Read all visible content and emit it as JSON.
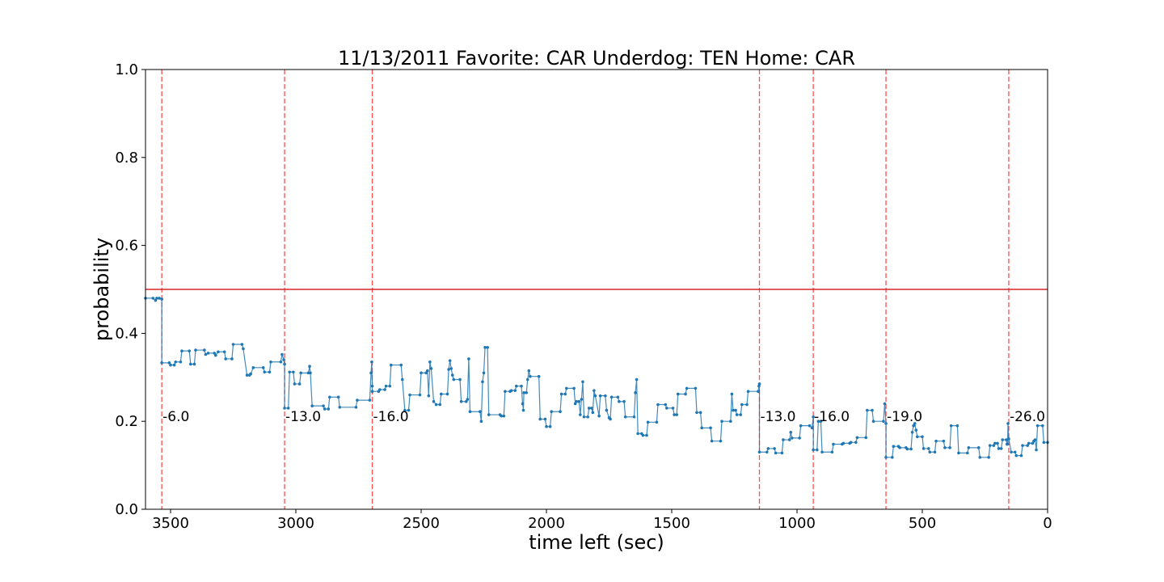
{
  "chart_data": {
    "type": "line",
    "title": "11/13/2011 Favorite: CAR Underdog: TEN Home: CAR",
    "xlabel": "time left (sec)",
    "ylabel": "probability",
    "xlim": [
      3600,
      0
    ],
    "ylim": [
      0.0,
      1.0
    ],
    "x_ticks": [
      3500,
      3000,
      2500,
      2000,
      1500,
      1000,
      500,
      0
    ],
    "x_tick_labels": [
      "3500",
      "3000",
      "2500",
      "2000",
      "1500",
      "1000",
      "500",
      "0"
    ],
    "y_ticks": [
      0.0,
      0.2,
      0.4,
      0.6,
      0.8,
      1.0
    ],
    "y_tick_labels": [
      "0.0",
      "0.2",
      "0.4",
      "0.6",
      "0.8",
      "1.0"
    ],
    "grid": false,
    "reference_line": {
      "y": 0.5,
      "color": "#d62728"
    },
    "line_color": "#1f77b4",
    "marker_color": "#1f77b4",
    "event_line_color": "#ff4d4d",
    "events": [
      {
        "x": 3535,
        "label": "-6.0"
      },
      {
        "x": 3045,
        "label": "-13.0"
      },
      {
        "x": 2695,
        "label": "-16.0"
      },
      {
        "x": 1150,
        "label": "-13.0"
      },
      {
        "x": 935,
        "label": "-16.0"
      },
      {
        "x": 645,
        "label": "-19.0"
      },
      {
        "x": 155,
        "label": "-26.0"
      }
    ],
    "series": [
      {
        "points": [
          [
            3600,
            0.48
          ],
          [
            3570,
            0.48
          ],
          [
            3560,
            0.475
          ],
          [
            3555,
            0.48
          ],
          [
            3545,
            0.48
          ],
          [
            3535,
            0.478
          ],
          [
            3535,
            0.333
          ],
          [
            3505,
            0.333
          ],
          [
            3500,
            0.328
          ],
          [
            3485,
            0.328
          ],
          [
            3480,
            0.335
          ],
          [
            3460,
            0.335
          ],
          [
            3455,
            0.36
          ],
          [
            3425,
            0.36
          ],
          [
            3420,
            0.33
          ],
          [
            3405,
            0.33
          ],
          [
            3400,
            0.362
          ],
          [
            3365,
            0.362
          ],
          [
            3360,
            0.352
          ],
          [
            3350,
            0.355
          ],
          [
            3325,
            0.355
          ],
          [
            3320,
            0.35
          ],
          [
            3310,
            0.358
          ],
          [
            3285,
            0.358
          ],
          [
            3280,
            0.342
          ],
          [
            3255,
            0.342
          ],
          [
            3250,
            0.375
          ],
          [
            3215,
            0.375
          ],
          [
            3210,
            0.365
          ],
          [
            3195,
            0.305
          ],
          [
            3185,
            0.305
          ],
          [
            3180,
            0.308
          ],
          [
            3170,
            0.322
          ],
          [
            3130,
            0.322
          ],
          [
            3125,
            0.312
          ],
          [
            3105,
            0.312
          ],
          [
            3100,
            0.335
          ],
          [
            3060,
            0.335
          ],
          [
            3055,
            0.352
          ],
          [
            3048,
            0.34
          ],
          [
            3045,
            0.33
          ],
          [
            3045,
            0.23
          ],
          [
            3030,
            0.23
          ],
          [
            3025,
            0.312
          ],
          [
            3010,
            0.312
          ],
          [
            3005,
            0.285
          ],
          [
            2985,
            0.285
          ],
          [
            2980,
            0.31
          ],
          [
            2950,
            0.31
          ],
          [
            2945,
            0.325
          ],
          [
            2942,
            0.31
          ],
          [
            2935,
            0.235
          ],
          [
            2890,
            0.235
          ],
          [
            2885,
            0.228
          ],
          [
            2870,
            0.228
          ],
          [
            2865,
            0.255
          ],
          [
            2830,
            0.255
          ],
          [
            2825,
            0.232
          ],
          [
            2760,
            0.232
          ],
          [
            2755,
            0.248
          ],
          [
            2705,
            0.248
          ],
          [
            2700,
            0.31
          ],
          [
            2697,
            0.335
          ],
          [
            2695,
            0.28
          ],
          [
            2695,
            0.268
          ],
          [
            2670,
            0.268
          ],
          [
            2665,
            0.272
          ],
          [
            2645,
            0.272
          ],
          [
            2640,
            0.28
          ],
          [
            2625,
            0.28
          ],
          [
            2620,
            0.328
          ],
          [
            2580,
            0.328
          ],
          [
            2575,
            0.295
          ],
          [
            2565,
            0.225
          ],
          [
            2550,
            0.225
          ],
          [
            2545,
            0.26
          ],
          [
            2505,
            0.26
          ],
          [
            2500,
            0.31
          ],
          [
            2480,
            0.31
          ],
          [
            2475,
            0.315
          ],
          [
            2470,
            0.258
          ],
          [
            2465,
            0.335
          ],
          [
            2460,
            0.32
          ],
          [
            2450,
            0.245
          ],
          [
            2440,
            0.238
          ],
          [
            2425,
            0.238
          ],
          [
            2420,
            0.262
          ],
          [
            2395,
            0.262
          ],
          [
            2390,
            0.318
          ],
          [
            2385,
            0.338
          ],
          [
            2380,
            0.32
          ],
          [
            2375,
            0.305
          ],
          [
            2370,
            0.295
          ],
          [
            2345,
            0.295
          ],
          [
            2340,
            0.245
          ],
          [
            2320,
            0.245
          ],
          [
            2315,
            0.25
          ],
          [
            2310,
            0.342
          ],
          [
            2305,
            0.222
          ],
          [
            2265,
            0.222
          ],
          [
            2260,
            0.2
          ],
          [
            2255,
            0.29
          ],
          [
            2250,
            0.31
          ],
          [
            2245,
            0.368
          ],
          [
            2235,
            0.368
          ],
          [
            2230,
            0.215
          ],
          [
            2185,
            0.215
          ],
          [
            2180,
            0.212
          ],
          [
            2170,
            0.212
          ],
          [
            2165,
            0.268
          ],
          [
            2145,
            0.268
          ],
          [
            2140,
            0.27
          ],
          [
            2125,
            0.27
          ],
          [
            2120,
            0.28
          ],
          [
            2100,
            0.28
          ],
          [
            2095,
            0.24
          ],
          [
            2092,
            0.225
          ],
          [
            2090,
            0.265
          ],
          [
            2080,
            0.265
          ],
          [
            2075,
            0.295
          ],
          [
            2070,
            0.315
          ],
          [
            2065,
            0.302
          ],
          [
            2030,
            0.302
          ],
          [
            2025,
            0.205
          ],
          [
            2005,
            0.205
          ],
          [
            2000,
            0.188
          ],
          [
            1985,
            0.188
          ],
          [
            1980,
            0.222
          ],
          [
            1945,
            0.222
          ],
          [
            1940,
            0.262
          ],
          [
            1925,
            0.262
          ],
          [
            1920,
            0.275
          ],
          [
            1890,
            0.275
          ],
          [
            1885,
            0.24
          ],
          [
            1880,
            0.245
          ],
          [
            1870,
            0.245
          ],
          [
            1865,
            0.215
          ],
          [
            1860,
            0.25
          ],
          [
            1855,
            0.29
          ],
          [
            1850,
            0.21
          ],
          [
            1835,
            0.21
          ],
          [
            1830,
            0.23
          ],
          [
            1820,
            0.23
          ],
          [
            1815,
            0.22
          ],
          [
            1810,
            0.27
          ],
          [
            1805,
            0.258
          ],
          [
            1790,
            0.212
          ],
          [
            1785,
            0.258
          ],
          [
            1765,
            0.258
          ],
          [
            1760,
            0.225
          ],
          [
            1750,
            0.208
          ],
          [
            1745,
            0.205
          ],
          [
            1740,
            0.255
          ],
          [
            1715,
            0.255
          ],
          [
            1710,
            0.245
          ],
          [
            1690,
            0.245
          ],
          [
            1685,
            0.21
          ],
          [
            1650,
            0.21
          ],
          [
            1645,
            0.265
          ],
          [
            1640,
            0.295
          ],
          [
            1635,
            0.172
          ],
          [
            1620,
            0.172
          ],
          [
            1615,
            0.168
          ],
          [
            1600,
            0.168
          ],
          [
            1595,
            0.198
          ],
          [
            1560,
            0.198
          ],
          [
            1555,
            0.238
          ],
          [
            1525,
            0.238
          ],
          [
            1520,
            0.23
          ],
          [
            1495,
            0.23
          ],
          [
            1490,
            0.215
          ],
          [
            1480,
            0.215
          ],
          [
            1475,
            0.262
          ],
          [
            1445,
            0.262
          ],
          [
            1440,
            0.275
          ],
          [
            1405,
            0.275
          ],
          [
            1400,
            0.22
          ],
          [
            1385,
            0.22
          ],
          [
            1380,
            0.185
          ],
          [
            1345,
            0.185
          ],
          [
            1340,
            0.155
          ],
          [
            1305,
            0.155
          ],
          [
            1300,
            0.2
          ],
          [
            1265,
            0.2
          ],
          [
            1260,
            0.262
          ],
          [
            1255,
            0.225
          ],
          [
            1245,
            0.225
          ],
          [
            1240,
            0.215
          ],
          [
            1225,
            0.215
          ],
          [
            1220,
            0.238
          ],
          [
            1200,
            0.238
          ],
          [
            1195,
            0.268
          ],
          [
            1155,
            0.268
          ],
          [
            1152,
            0.28
          ],
          [
            1150,
            0.285
          ],
          [
            1150,
            0.13
          ],
          [
            1120,
            0.13
          ],
          [
            1115,
            0.138
          ],
          [
            1090,
            0.138
          ],
          [
            1085,
            0.128
          ],
          [
            1060,
            0.128
          ],
          [
            1055,
            0.158
          ],
          [
            1030,
            0.158
          ],
          [
            1025,
            0.175
          ],
          [
            1020,
            0.162
          ],
          [
            990,
            0.162
          ],
          [
            985,
            0.19
          ],
          [
            950,
            0.19
          ],
          [
            940,
            0.185
          ],
          [
            935,
            0.21
          ],
          [
            935,
            0.135
          ],
          [
            920,
            0.135
          ],
          [
            915,
            0.2
          ],
          [
            905,
            0.2
          ],
          [
            900,
            0.13
          ],
          [
            860,
            0.13
          ],
          [
            855,
            0.148
          ],
          [
            820,
            0.148
          ],
          [
            815,
            0.15
          ],
          [
            790,
            0.15
          ],
          [
            785,
            0.152
          ],
          [
            765,
            0.152
          ],
          [
            760,
            0.163
          ],
          [
            725,
            0.163
          ],
          [
            720,
            0.225
          ],
          [
            700,
            0.225
          ],
          [
            695,
            0.2
          ],
          [
            655,
            0.2
          ],
          [
            650,
            0.24
          ],
          [
            645,
            0.195
          ],
          [
            645,
            0.118
          ],
          [
            620,
            0.118
          ],
          [
            615,
            0.143
          ],
          [
            595,
            0.143
          ],
          [
            590,
            0.14
          ],
          [
            565,
            0.14
          ],
          [
            560,
            0.137
          ],
          [
            545,
            0.137
          ],
          [
            540,
            0.175
          ],
          [
            535,
            0.19
          ],
          [
            530,
            0.195
          ],
          [
            525,
            0.18
          ],
          [
            520,
            0.165
          ],
          [
            500,
            0.165
          ],
          [
            495,
            0.138
          ],
          [
            475,
            0.138
          ],
          [
            470,
            0.13
          ],
          [
            450,
            0.13
          ],
          [
            445,
            0.155
          ],
          [
            415,
            0.155
          ],
          [
            410,
            0.14
          ],
          [
            390,
            0.14
          ],
          [
            385,
            0.19
          ],
          [
            360,
            0.19
          ],
          [
            355,
            0.128
          ],
          [
            320,
            0.128
          ],
          [
            315,
            0.14
          ],
          [
            275,
            0.14
          ],
          [
            270,
            0.118
          ],
          [
            235,
            0.118
          ],
          [
            230,
            0.145
          ],
          [
            215,
            0.145
          ],
          [
            210,
            0.15
          ],
          [
            200,
            0.15
          ],
          [
            195,
            0.138
          ],
          [
            185,
            0.138
          ],
          [
            180,
            0.158
          ],
          [
            165,
            0.158
          ],
          [
            162,
            0.148
          ],
          [
            160,
            0.148
          ],
          [
            158,
            0.195
          ],
          [
            155,
            0.16
          ],
          [
            145,
            0.13
          ],
          [
            130,
            0.13
          ],
          [
            125,
            0.122
          ],
          [
            105,
            0.122
          ],
          [
            100,
            0.145
          ],
          [
            80,
            0.145
          ],
          [
            75,
            0.15
          ],
          [
            60,
            0.15
          ],
          [
            55,
            0.155
          ],
          [
            50,
            0.158
          ],
          [
            45,
            0.135
          ],
          [
            40,
            0.19
          ],
          [
            20,
            0.19
          ],
          [
            15,
            0.152
          ],
          [
            0,
            0.152
          ]
        ]
      }
    ]
  }
}
